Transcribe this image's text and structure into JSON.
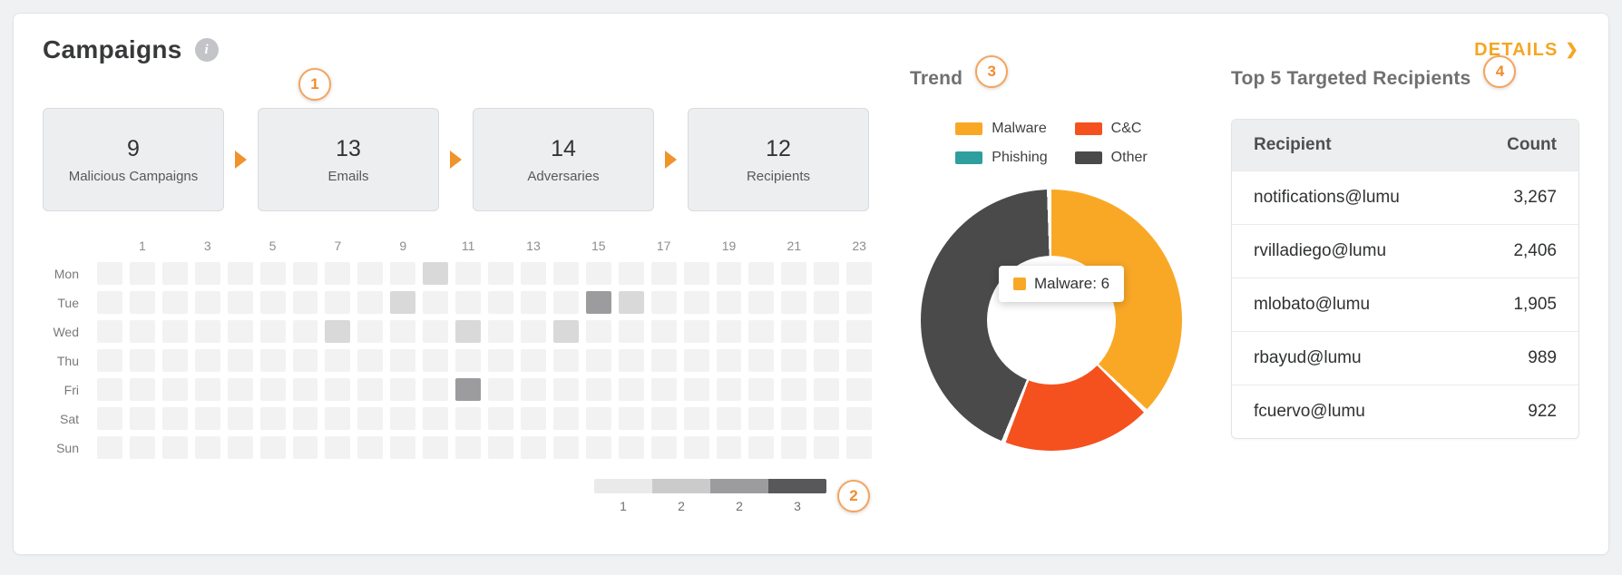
{
  "colors": {
    "accent": "#F5A623",
    "arrow": "#F0932B",
    "badge-border": "#F5A45E",
    "badge-text": "#F08C2E"
  },
  "header": {
    "title": "Campaigns",
    "info_icon": "i",
    "details_label": "DETAILS",
    "details_chevron": "❯"
  },
  "annotations": {
    "badges": [
      "1",
      "2",
      "3",
      "4"
    ]
  },
  "funnel": {
    "cards": [
      {
        "value": "9",
        "label": "Malicious Campaigns"
      },
      {
        "value": "13",
        "label": "Emails"
      },
      {
        "value": "14",
        "label": "Adversaries"
      },
      {
        "value": "12",
        "label": "Recipients"
      }
    ]
  },
  "recipients": {
    "title": "Top 5 Targeted Recipients",
    "columns": [
      "Recipient",
      "Count"
    ],
    "rows": [
      {
        "recipient": "notifications@lumu",
        "count": "3,267"
      },
      {
        "recipient": "rvilladiego@lumu",
        "count": "2,406"
      },
      {
        "recipient": "mlobato@lumu",
        "count": "1,905"
      },
      {
        "recipient": "rbayud@lumu",
        "count": "989"
      },
      {
        "recipient": "fcuervo@lumu",
        "count": "922"
      }
    ]
  },
  "chart_data": [
    {
      "type": "heatmap",
      "title": "Campaign activity by day and hour",
      "hours": 24,
      "x_labels_shown": [
        "1",
        "3",
        "5",
        "7",
        "9",
        "11",
        "13",
        "15",
        "17",
        "19",
        "21",
        "23"
      ],
      "rows": [
        "Mon",
        "Tue",
        "Wed",
        "Thu",
        "Fri",
        "Sat",
        "Sun"
      ],
      "cells": [
        {
          "row": "Mon",
          "hour": 10,
          "value": 1
        },
        {
          "row": "Tue",
          "hour": 9,
          "value": 1
        },
        {
          "row": "Tue",
          "hour": 15,
          "value": 2
        },
        {
          "row": "Tue",
          "hour": 16,
          "value": 1
        },
        {
          "row": "Wed",
          "hour": 7,
          "value": 1
        },
        {
          "row": "Wed",
          "hour": 11,
          "value": 1
        },
        {
          "row": "Wed",
          "hour": 14,
          "value": 1
        },
        {
          "row": "Fri",
          "hour": 11,
          "value": 2
        }
      ],
      "value_colors": {
        "0": "#F2F2F3",
        "1": "#D9D9DA",
        "2": "#9C9C9E",
        "3": "#58585A"
      },
      "legend_scale": {
        "colors": [
          "#EAEAEB",
          "#CBCBCC",
          "#9C9C9E",
          "#58585A"
        ],
        "labels": [
          "1",
          "2",
          "2",
          "3"
        ]
      }
    },
    {
      "type": "pie",
      "donut": true,
      "title": "Trend",
      "legend_position": "top",
      "series": [
        {
          "name": "Malware",
          "value": 6,
          "color": "#F9A826"
        },
        {
          "name": "C&C",
          "value": 3,
          "color": "#F4511E"
        },
        {
          "name": "Phishing",
          "value": 0,
          "color": "#2E9E9E"
        },
        {
          "name": "Other",
          "value": 7,
          "color": "#4A4A4A"
        }
      ],
      "tooltip": {
        "label": "Malware",
        "value": 6
      }
    }
  ]
}
